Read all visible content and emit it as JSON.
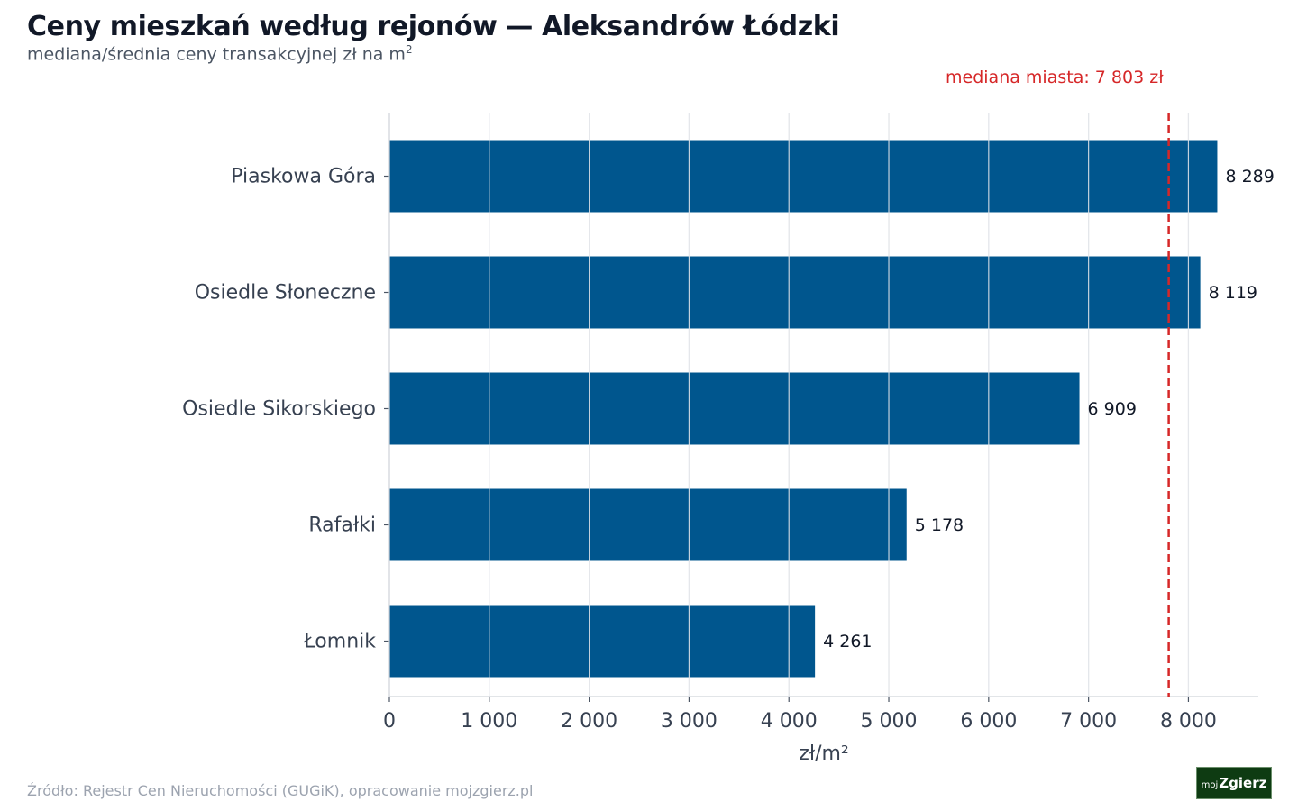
{
  "header": {
    "title": "Ceny mieszkań według rejonów — Aleksandrów Łódzki",
    "subtitle_main": "mediana/średnia ceny transakcyjnej zł na m",
    "subtitle_sup": "2"
  },
  "footer": {
    "source": "Źródło: Rejestr Cen Nieruchomości (GUGiK), opracowanie mojzgierz.pl",
    "logo_small": "moj",
    "logo_big": "Zgierz"
  },
  "colors": {
    "bar": "#00568e",
    "reference_line": "#d62728",
    "grid": "#e5e7eb"
  },
  "chart_data": {
    "type": "bar",
    "orientation": "horizontal",
    "categories": [
      "Piaskowa Góra",
      "Osiedle Słoneczne",
      "Osiedle Sikorskiego",
      "Rafałki",
      "Łomnik"
    ],
    "values": [
      8289,
      8119,
      6909,
      5178,
      4261
    ],
    "value_labels": [
      "8 289",
      "8 119",
      "6 909",
      "5 178",
      "4 261"
    ],
    "xlabel": "zł/m²",
    "xlim": [
      0,
      8700
    ],
    "xticks": [
      0,
      1000,
      2000,
      3000,
      4000,
      5000,
      6000,
      7000,
      8000
    ],
    "xtick_labels": [
      "0",
      "1 000",
      "2 000",
      "3 000",
      "4 000",
      "5 000",
      "6 000",
      "7 000",
      "8 000"
    ],
    "grid": true,
    "reference_line": {
      "value": 7803,
      "label": "mediana miasta: 7 803 zł",
      "style": "dashed"
    }
  }
}
